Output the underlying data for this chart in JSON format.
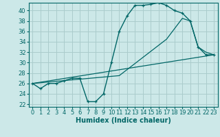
{
  "xlabel": "Humidex (Indice chaleur)",
  "bg_color": "#cce8e8",
  "grid_color": "#aacccc",
  "line_color": "#006666",
  "xlim": [
    -0.5,
    23.5
  ],
  "ylim": [
    21.5,
    41.5
  ],
  "xticks": [
    0,
    1,
    2,
    3,
    4,
    5,
    6,
    7,
    8,
    9,
    10,
    11,
    12,
    13,
    14,
    15,
    16,
    17,
    18,
    19,
    20,
    21,
    22,
    23
  ],
  "yticks": [
    22,
    24,
    26,
    28,
    30,
    32,
    34,
    36,
    38,
    40
  ],
  "series1_x": [
    0,
    1,
    2,
    3,
    4,
    5,
    6,
    7,
    8,
    9,
    10,
    11,
    12,
    13,
    14,
    15,
    16,
    17,
    18,
    19,
    20,
    21,
    22,
    23
  ],
  "series1_y": [
    26.0,
    25.0,
    26.0,
    26.0,
    26.5,
    27.0,
    27.0,
    22.5,
    22.5,
    24.0,
    30.0,
    36.0,
    39.0,
    41.0,
    41.0,
    41.2,
    41.5,
    41.0,
    40.0,
    39.5,
    38.0,
    33.0,
    31.5,
    31.5
  ],
  "series2_x": [
    0,
    23
  ],
  "series2_y": [
    26.0,
    31.5
  ],
  "series3_x": [
    0,
    11,
    17,
    19,
    20,
    21,
    22,
    23
  ],
  "series3_y": [
    26.0,
    27.5,
    34.5,
    38.5,
    38.0,
    33.0,
    32.0,
    31.5
  ],
  "xlabel_fontsize": 7,
  "tick_fontsize": 6
}
